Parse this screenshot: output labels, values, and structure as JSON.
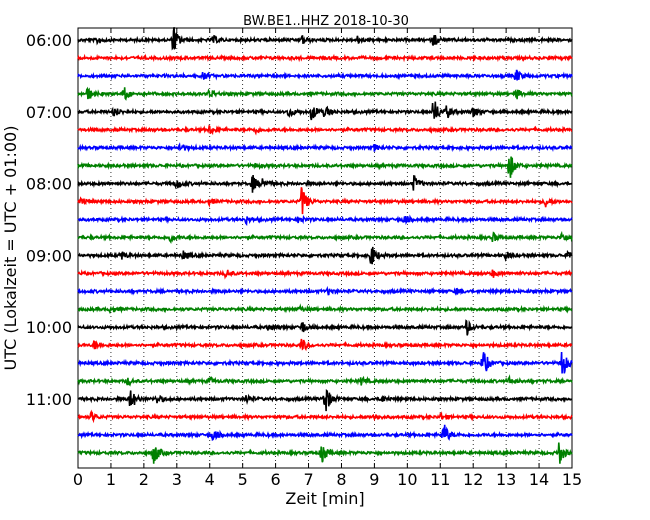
{
  "chart_data": {
    "type": "line",
    "chart_kind": "helicorder",
    "title": "BW.BE1..HHZ 2018-10-30",
    "xlabel": "Zeit  [min]",
    "ylabel": "UTC (Lokalzeit = UTC + 01:00)",
    "xlim": [
      0,
      15
    ],
    "x_ticks": [
      0,
      1,
      2,
      3,
      4,
      5,
      6,
      7,
      8,
      9,
      10,
      11,
      12,
      13,
      14,
      15
    ],
    "y_tick_labels": [
      "06:00",
      "07:00",
      "08:00",
      "09:00",
      "10:00",
      "11:00"
    ],
    "minutes_per_line": 15,
    "grid": "vertical dotted at each minute",
    "colors": [
      "#000000",
      "#ff0000",
      "#0000ff",
      "#008000"
    ],
    "traces": [
      {
        "start": "06:00",
        "events": [
          [
            0.6,
            0.25
          ],
          [
            2.9,
            1.0
          ],
          [
            4.1,
            0.25
          ],
          [
            6.8,
            0.3
          ],
          [
            8.5,
            0.25
          ],
          [
            10.8,
            0.45
          ]
        ]
      },
      {
        "start": "06:15",
        "events": []
      },
      {
        "start": "06:30",
        "events": [
          [
            3.8,
            0.2
          ],
          [
            13.3,
            0.45
          ]
        ]
      },
      {
        "start": "06:45",
        "events": [
          [
            0.3,
            0.45
          ],
          [
            1.4,
            0.45
          ],
          [
            4.0,
            0.3
          ],
          [
            13.3,
            0.35
          ]
        ]
      },
      {
        "start": "07:00",
        "events": [
          [
            1.1,
            0.35
          ],
          [
            6.4,
            0.35
          ],
          [
            7.1,
            0.6
          ],
          [
            7.5,
            0.45
          ],
          [
            10.8,
            1.0
          ],
          [
            11.2,
            0.4
          ],
          [
            12.0,
            0.4
          ]
        ]
      },
      {
        "start": "07:15",
        "events": [
          [
            4.0,
            0.3
          ],
          [
            5.4,
            0.2
          ]
        ]
      },
      {
        "start": "07:30",
        "events": [
          [
            3.1,
            0.3
          ],
          [
            9.0,
            0.2
          ]
        ]
      },
      {
        "start": "07:45",
        "events": [
          [
            13.1,
            1.0
          ],
          [
            5.4,
            0.15
          ]
        ]
      },
      {
        "start": "08:00",
        "events": [
          [
            3.0,
            0.35
          ],
          [
            5.3,
            0.55
          ],
          [
            5.6,
            0.35
          ],
          [
            10.2,
            0.5
          ]
        ]
      },
      {
        "start": "08:15",
        "events": [
          [
            0.1,
            0.3
          ],
          [
            4.0,
            0.2
          ],
          [
            6.8,
            1.1
          ],
          [
            14.2,
            0.35
          ]
        ]
      },
      {
        "start": "08:30",
        "events": [
          [
            5.1,
            0.25
          ],
          [
            6.7,
            0.25
          ],
          [
            9.9,
            0.3
          ]
        ]
      },
      {
        "start": "08:45",
        "events": [
          [
            2.8,
            0.3
          ],
          [
            12.6,
            0.3
          ],
          [
            14.7,
            0.35
          ]
        ]
      },
      {
        "start": "09:00",
        "events": [
          [
            1.3,
            0.3
          ],
          [
            3.2,
            0.3
          ],
          [
            8.9,
            0.8
          ],
          [
            13.0,
            0.25
          ],
          [
            14.9,
            0.35
          ]
        ]
      },
      {
        "start": "09:15",
        "events": [
          [
            4.5,
            0.3
          ],
          [
            12.6,
            0.25
          ]
        ]
      },
      {
        "start": "09:30",
        "events": [
          [
            7.6,
            0.2
          ],
          [
            11.5,
            0.2
          ]
        ]
      },
      {
        "start": "09:45",
        "events": [
          [
            1.0,
            0.2
          ],
          [
            6.7,
            0.2
          ]
        ]
      },
      {
        "start": "10:00",
        "events": [
          [
            5.8,
            0.25
          ],
          [
            6.8,
            0.45
          ],
          [
            11.8,
            0.55
          ]
        ]
      },
      {
        "start": "10:15",
        "events": [
          [
            0.5,
            0.3
          ],
          [
            6.8,
            0.45
          ]
        ]
      },
      {
        "start": "10:30",
        "events": [
          [
            12.3,
            1.0
          ],
          [
            14.7,
            1.1
          ]
        ]
      },
      {
        "start": "10:45",
        "events": [
          [
            1.5,
            0.25
          ],
          [
            4.0,
            0.25
          ],
          [
            8.6,
            0.25
          ],
          [
            13.1,
            0.25
          ]
        ]
      },
      {
        "start": "11:00",
        "events": [
          [
            1.6,
            0.8
          ],
          [
            2.4,
            0.3
          ],
          [
            5.1,
            0.3
          ],
          [
            7.5,
            1.2
          ],
          [
            9.2,
            0.25
          ]
        ]
      },
      {
        "start": "11:15",
        "events": [
          [
            0.4,
            0.3
          ],
          [
            9.0,
            0.2
          ],
          [
            11.0,
            0.2
          ]
        ]
      },
      {
        "start": "11:30",
        "events": [
          [
            4.1,
            0.4
          ],
          [
            11.1,
            0.85
          ]
        ]
      },
      {
        "start": "11:45",
        "events": [
          [
            2.3,
            0.8
          ],
          [
            7.4,
            0.8
          ],
          [
            14.6,
            0.9
          ]
        ]
      }
    ]
  }
}
